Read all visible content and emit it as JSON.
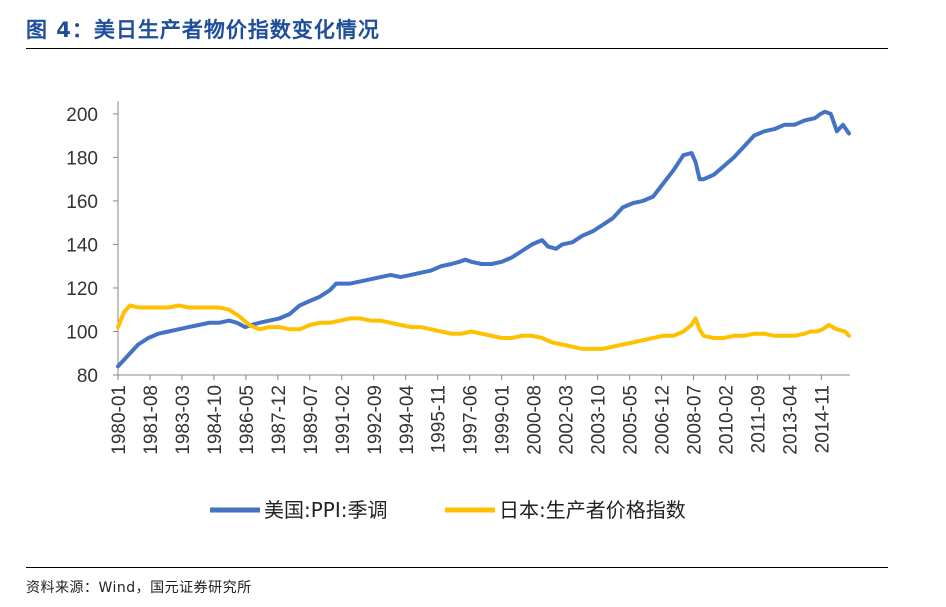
{
  "title": "图 4：美日生产者物价指数变化情况",
  "source": "资料来源：Wind，国元证券研究所",
  "chart_data": {
    "type": "line",
    "title": "",
    "xlabel": "",
    "ylabel": "",
    "ylim": [
      80,
      205
    ],
    "yticks": [
      80,
      100,
      120,
      140,
      160,
      180,
      200
    ],
    "xrange": [
      1980.0,
      2016.25
    ],
    "xticks": [
      "1980-01",
      "1981-08",
      "1983-03",
      "1984-10",
      "1986-05",
      "1987-12",
      "1989-07",
      "1991-02",
      "1992-09",
      "1994-04",
      "1995-11",
      "1997-06",
      "1999-01",
      "2000-08",
      "2002-03",
      "2003-10",
      "2005-05",
      "2006-12",
      "2008-07",
      "2010-02",
      "2011-09",
      "2013-04",
      "2014-11"
    ],
    "grid": false,
    "legend_position": "bottom",
    "series": [
      {
        "name": "美国:PPI:季调",
        "color": "#4472c4",
        "x": [
          1980.0,
          1980.5,
          1981.0,
          1981.5,
          1982.0,
          1982.5,
          1983.0,
          1983.5,
          1984.0,
          1984.5,
          1985.0,
          1985.5,
          1985.9,
          1986.3,
          1986.6,
          1987.0,
          1987.5,
          1988.0,
          1988.5,
          1989.0,
          1989.5,
          1990.0,
          1990.5,
          1990.8,
          1991.0,
          1991.5,
          1992.0,
          1992.5,
          1993.0,
          1993.5,
          1994.0,
          1994.5,
          1995.0,
          1995.5,
          1996.0,
          1996.5,
          1996.9,
          1997.2,
          1997.5,
          1998.0,
          1998.5,
          1999.0,
          1999.5,
          2000.0,
          2000.5,
          2001.0,
          2001.3,
          2001.7,
          2002.0,
          2002.5,
          2003.0,
          2003.5,
          2004.0,
          2004.5,
          2005.0,
          2005.5,
          2006.0,
          2006.5,
          2007.0,
          2007.5,
          2008.0,
          2008.4,
          2008.6,
          2008.8,
          2009.0,
          2009.5,
          2010.0,
          2010.5,
          2011.0,
          2011.5,
          2012.0,
          2012.5,
          2013.0,
          2013.5,
          2014.0,
          2014.5,
          2014.8,
          2015.0,
          2015.3,
          2015.6,
          2015.9,
          2016.2
        ],
        "y": [
          84,
          89,
          94,
          97,
          99,
          100,
          101,
          102,
          103,
          104,
          104,
          105,
          104,
          102,
          103,
          104,
          105,
          106,
          108,
          112,
          114,
          116,
          119,
          122,
          122,
          122,
          123,
          124,
          125,
          126,
          125,
          126,
          127,
          128,
          130,
          131,
          132,
          133,
          132,
          131,
          131,
          132,
          134,
          137,
          140,
          142,
          139,
          138,
          140,
          141,
          144,
          146,
          149,
          152,
          157,
          159,
          160,
          162,
          168,
          174,
          181,
          182,
          178,
          170,
          170,
          172,
          176,
          180,
          185,
          190,
          192,
          193,
          195,
          195,
          197,
          198,
          200,
          201,
          200,
          192,
          195,
          191
        ]
      },
      {
        "name": "日本:生产者价格指数",
        "color": "#ffc000",
        "x": [
          1980.0,
          1980.3,
          1980.6,
          1981.0,
          1981.5,
          1982.0,
          1982.5,
          1983.0,
          1983.5,
          1984.0,
          1984.5,
          1985.0,
          1985.5,
          1986.0,
          1986.5,
          1987.0,
          1987.5,
          1988.0,
          1988.5,
          1989.0,
          1989.5,
          1990.0,
          1990.5,
          1991.0,
          1991.5,
          1992.0,
          1992.5,
          1993.0,
          1993.5,
          1994.0,
          1994.5,
          1995.0,
          1995.5,
          1996.0,
          1996.5,
          1997.0,
          1997.5,
          1998.0,
          1998.5,
          1999.0,
          1999.5,
          2000.0,
          2000.5,
          2001.0,
          2001.5,
          2002.0,
          2002.5,
          2003.0,
          2003.5,
          2004.0,
          2004.5,
          2005.0,
          2005.5,
          2006.0,
          2006.5,
          2007.0,
          2007.5,
          2008.0,
          2008.4,
          2008.6,
          2008.8,
          2009.0,
          2009.5,
          2010.0,
          2010.5,
          2011.0,
          2011.5,
          2012.0,
          2012.5,
          2013.0,
          2013.5,
          2014.0,
          2014.3,
          2014.6,
          2014.9,
          2015.2,
          2015.6,
          2016.0,
          2016.2
        ],
        "y": [
          102,
          109,
          112,
          111,
          111,
          111,
          111,
          112,
          111,
          111,
          111,
          111,
          110,
          107,
          103,
          101,
          102,
          102,
          101,
          101,
          103,
          104,
          104,
          105,
          106,
          106,
          105,
          105,
          104,
          103,
          102,
          102,
          101,
          100,
          99,
          99,
          100,
          99,
          98,
          97,
          97,
          98,
          98,
          97,
          95,
          94,
          93,
          92,
          92,
          92,
          93,
          94,
          95,
          96,
          97,
          98,
          98,
          100,
          103,
          106,
          101,
          98,
          97,
          97,
          98,
          98,
          99,
          99,
          98,
          98,
          98,
          99,
          100,
          100,
          101,
          103,
          101,
          100,
          98
        ]
      }
    ]
  }
}
